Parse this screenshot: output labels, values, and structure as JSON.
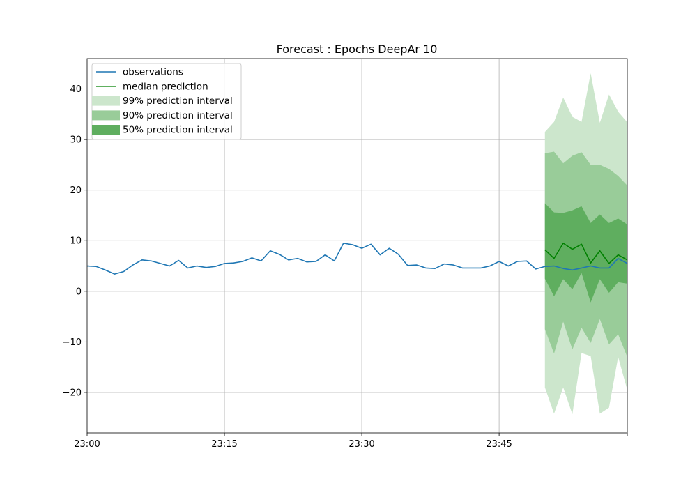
{
  "chart_data": {
    "type": "line",
    "title": "Forecast : Epochs DeepAr 10",
    "xlabel": "",
    "ylabel": "",
    "x_tick_labels": [
      "23:00",
      "23:15",
      "23:30",
      "23:45"
    ],
    "x_tick_minutes": [
      0,
      15,
      30,
      45
    ],
    "xlim": [
      0,
      59
    ],
    "ylim": [
      -28,
      46
    ],
    "y_ticks": [
      -20,
      -10,
      0,
      10,
      20,
      30,
      40
    ],
    "grid": true,
    "legend_position": "top-left",
    "legend": [
      {
        "label": "observations",
        "kind": "line",
        "color": "#1f77b4"
      },
      {
        "label": "median prediction",
        "kind": "line",
        "color": "#008000"
      },
      {
        "label": "99% prediction interval",
        "kind": "band",
        "color": "#cce6cc"
      },
      {
        "label": "90% prediction interval",
        "kind": "band",
        "color": "#99cc99"
      },
      {
        "label": "50% prediction interval",
        "kind": "band",
        "color": "#5fae5f"
      }
    ],
    "observations": {
      "name": "observations",
      "color": "#1f77b4",
      "x": [
        0,
        1,
        2,
        3,
        4,
        5,
        6,
        7,
        8,
        9,
        10,
        11,
        12,
        13,
        14,
        15,
        16,
        17,
        18,
        19,
        20,
        21,
        22,
        23,
        24,
        25,
        26,
        27,
        28,
        29,
        30,
        31,
        32,
        33,
        34,
        35,
        36,
        37,
        38,
        39,
        40,
        41,
        42,
        43,
        44,
        45,
        46,
        47,
        48,
        49,
        50,
        51,
        52,
        53,
        54,
        55,
        56,
        57,
        58,
        59
      ],
      "values": [
        5.0,
        4.9,
        4.2,
        3.4,
        3.9,
        5.2,
        6.2,
        6.0,
        5.5,
        5.0,
        6.1,
        4.6,
        5.0,
        4.7,
        4.9,
        5.5,
        5.6,
        5.9,
        6.6,
        6.0,
        8.0,
        7.3,
        6.2,
        6.5,
        5.8,
        5.9,
        7.2,
        6.0,
        9.5,
        9.2,
        8.5,
        9.3,
        7.2,
        8.5,
        7.3,
        5.1,
        5.2,
        4.6,
        4.5,
        5.4,
        5.2,
        4.6,
        4.6,
        4.6,
        5.0,
        5.9,
        5.0,
        5.9,
        6.0,
        4.4,
        4.9,
        5.0,
        4.5,
        4.2,
        4.6,
        5.0,
        4.6,
        4.6,
        6.5,
        5.5
      ]
    },
    "forecast": {
      "x": [
        50,
        51,
        52,
        53,
        54,
        55,
        56,
        57,
        58,
        59
      ],
      "median": {
        "name": "median prediction",
        "color": "#008000",
        "values": [
          8.2,
          6.5,
          9.5,
          8.3,
          9.3,
          5.6,
          8.0,
          5.5,
          7.2,
          6.2
        ]
      },
      "p99": {
        "name": "99% prediction interval",
        "color": "#cce6cc",
        "lower": [
          -19.0,
          -24.2,
          -19.0,
          -24.3,
          -12.2,
          -12.8,
          -24.2,
          -23.0,
          -13.0,
          -19.5
        ],
        "upper": [
          31.5,
          33.5,
          38.3,
          34.5,
          33.5,
          43.1,
          33.3,
          38.9,
          35.5,
          33.4
        ]
      },
      "p90": {
        "name": "90% prediction interval",
        "color": "#99cc99",
        "lower": [
          -7.5,
          -12.3,
          -6.0,
          -11.5,
          -7.2,
          -10.2,
          -5.5,
          -10.5,
          -8.5,
          -13.0
        ],
        "upper": [
          27.3,
          27.6,
          25.3,
          26.8,
          27.5,
          25.0,
          25.0,
          24.2,
          22.8,
          20.9
        ]
      },
      "p50": {
        "name": "50% prediction interval",
        "color": "#5fae5f",
        "lower": [
          2.5,
          -1.0,
          2.4,
          0.4,
          3.6,
          -2.2,
          2.4,
          -0.3,
          1.8,
          1.5
        ],
        "upper": [
          17.4,
          15.6,
          15.5,
          16.0,
          16.8,
          13.5,
          15.2,
          13.5,
          14.4,
          13.2
        ]
      }
    }
  }
}
